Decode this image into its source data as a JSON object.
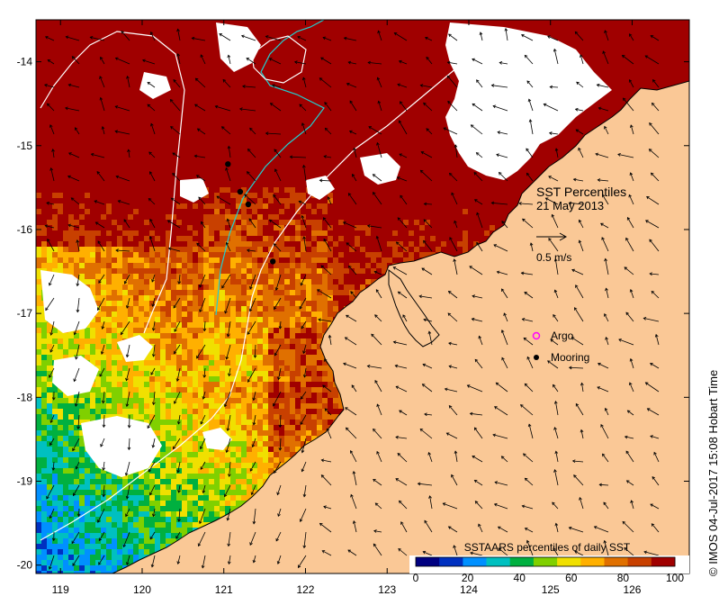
{
  "title": {
    "line1": "SST Percentiles",
    "line2": "21 May 2013"
  },
  "vector_scale": {
    "label": "0.5 m/s",
    "speed_ms": 0.5
  },
  "legend": {
    "argo_label": "Argo",
    "mooring_label": "Mooring",
    "argo_color": "#ff00ff",
    "mooring_color": "#000000"
  },
  "colorbar": {
    "title": "SSTAARS percentiles of daily SST",
    "ticks": [
      "0",
      "20",
      "40",
      "60",
      "80",
      "100"
    ],
    "colors": [
      "#000080",
      "#0030c0",
      "#0090ff",
      "#00c0c0",
      "#00b040",
      "#80d000",
      "#f0e000",
      "#ffb000",
      "#e07000",
      "#c84000",
      "#a00000"
    ]
  },
  "axes": {
    "x_ticks": [
      "119",
      "120",
      "121",
      "122",
      "123",
      "124",
      "125",
      "126"
    ],
    "y_ticks": [
      "-14",
      "-15",
      "-16",
      "-17",
      "-18",
      "-19",
      "-20"
    ],
    "lon_range": [
      118.7,
      126.7
    ],
    "lat_range": [
      -20.1,
      -13.5
    ]
  },
  "credit": {
    "text": "© IMOS 04-Jul-2017 15:08 Hobart Time"
  },
  "land_color": "#fac896",
  "cloud_color": "#ffffff",
  "moorings": [
    {
      "lon": 121.05,
      "lat": -15.22
    },
    {
      "lon": 121.2,
      "lat": -15.55
    },
    {
      "lon": 121.3,
      "lat": -15.7
    },
    {
      "lon": 121.6,
      "lat": -16.38
    }
  ]
}
